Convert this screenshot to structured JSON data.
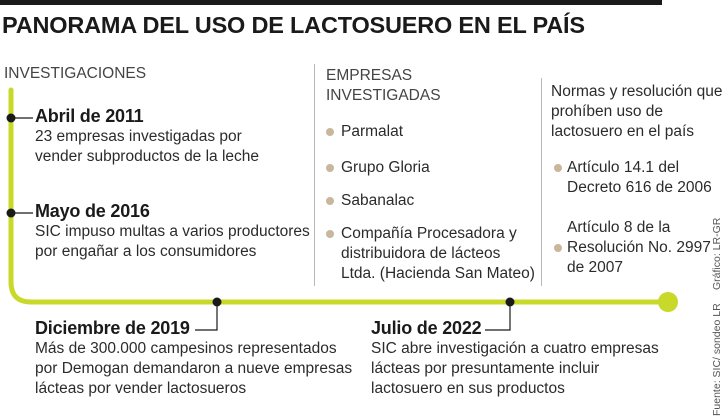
{
  "title": "PANORAMA DEL USO DE LACTOSUERO EN EL PAÍS",
  "investigations": {
    "label": "INVESTIGACIONES",
    "events": [
      {
        "date": "Abril de 2011",
        "lines": [
          "23 empresas investigadas por",
          "vender subproductos de la leche"
        ]
      },
      {
        "date": "Mayo de 2016",
        "lines": [
          "SIC  impuso multas a varios productores",
          "por engañar a los consumidores"
        ]
      },
      {
        "date": "Diciembre de 2019",
        "lines": [
          "Más de 300.000 campesinos representados",
          "por Demogan demandaron a nueve empresas",
          "lácteas por vender lactosueros"
        ]
      },
      {
        "date": "Julio de 2022",
        "lines": [
          "SIC abre investigación a cuatro empresas",
          "lácteas por presuntamente incluir",
          "lactosuero en sus productos"
        ]
      }
    ]
  },
  "companies": {
    "label_lines": [
      "EMPRESAS",
      "INVESTIGADAS"
    ],
    "items": [
      {
        "lines": [
          "Parmalat"
        ]
      },
      {
        "lines": [
          "Grupo Gloria"
        ]
      },
      {
        "lines": [
          "Sabanalac"
        ]
      },
      {
        "lines": [
          "Compañía Procesadora y",
          "distribuidora de lácteos",
          "Ltda. (Hacienda San Mateo)"
        ]
      }
    ]
  },
  "norms": {
    "label_lines": [
      "Normas y resolución que",
      "prohíben uso de",
      "lactosuero en el país"
    ],
    "items": [
      {
        "lines": [
          "Artículo 14.1 del",
          "Decreto 616 de 2006"
        ]
      },
      {
        "lines": [
          "Artículo 8 de la",
          "Resolución No. 2997",
          "de 2007"
        ]
      }
    ]
  },
  "credits": {
    "graphic": "Gráfico: LR-GR",
    "source": "Fuente: SIC/ sondeo LR"
  },
  "colors": {
    "timeline": "#c8d92a",
    "bullet": "#c8b79a",
    "text": "#2b2b2b",
    "title": "#1a1a1a"
  }
}
